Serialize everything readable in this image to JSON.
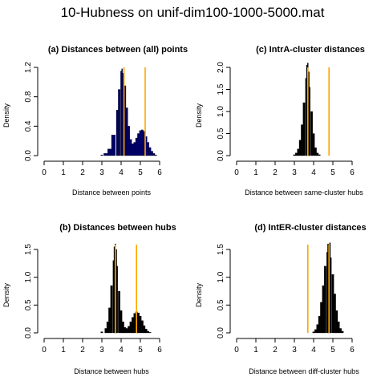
{
  "figure_title": "10-Hubness on unif-dim100-1000-5000.mat",
  "colors": {
    "hist_fill": "#000000",
    "hist_fill_dark_blue": "#000066",
    "marker_line": "#FFA500",
    "axis": "#000000"
  },
  "chart_data": [
    {
      "type": "histogram",
      "title": "(a) Distances between (all) points",
      "xlabel": "Distance between points",
      "ylabel": "Density",
      "xlim": [
        0,
        6
      ],
      "ylim": [
        0,
        1.2
      ],
      "xticks": [
        "0",
        "1",
        "2",
        "3",
        "4",
        "5",
        "6"
      ],
      "yticks": [
        "0.0",
        "0.4",
        "0.8",
        "1.2"
      ],
      "fill": "#000066",
      "vlines": [
        4.15,
        5.25
      ],
      "bins": [
        {
          "x": 3.0,
          "y": 0.01
        },
        {
          "x": 3.2,
          "y": 0.03
        },
        {
          "x": 3.4,
          "y": 0.09
        },
        {
          "x": 3.6,
          "y": 0.28
        },
        {
          "x": 3.8,
          "y": 0.62
        },
        {
          "x": 3.9,
          "y": 0.9
        },
        {
          "x": 4.0,
          "y": 1.15
        },
        {
          "x": 4.05,
          "y": 1.18
        },
        {
          "x": 4.1,
          "y": 1.12
        },
        {
          "x": 4.2,
          "y": 0.95
        },
        {
          "x": 4.3,
          "y": 0.65
        },
        {
          "x": 4.4,
          "y": 0.4
        },
        {
          "x": 4.5,
          "y": 0.22
        },
        {
          "x": 4.6,
          "y": 0.16
        },
        {
          "x": 4.7,
          "y": 0.18
        },
        {
          "x": 4.8,
          "y": 0.24
        },
        {
          "x": 4.9,
          "y": 0.3
        },
        {
          "x": 5.0,
          "y": 0.34
        },
        {
          "x": 5.1,
          "y": 0.35
        },
        {
          "x": 5.2,
          "y": 0.33
        },
        {
          "x": 5.3,
          "y": 0.26
        },
        {
          "x": 5.4,
          "y": 0.18
        },
        {
          "x": 5.5,
          "y": 0.11
        },
        {
          "x": 5.6,
          "y": 0.06
        },
        {
          "x": 5.7,
          "y": 0.03
        },
        {
          "x": 5.8,
          "y": 0.01
        }
      ]
    },
    {
      "type": "histogram",
      "title": "(c) IntrA-cluster distances",
      "xlabel": "Distance between same-cluster hubs",
      "ylabel": "Density",
      "xlim": [
        0,
        6
      ],
      "ylim": [
        0,
        2.0
      ],
      "xticks": [
        "0",
        "1",
        "2",
        "3",
        "4",
        "5",
        "6"
      ],
      "yticks": [
        "0.0",
        "0.5",
        "1.0",
        "1.5",
        "2.0"
      ],
      "fill": "#000000",
      "vlines": [
        3.7,
        4.8
      ],
      "bins": [
        {
          "x": 3.0,
          "y": 0.02
        },
        {
          "x": 3.1,
          "y": 0.06
        },
        {
          "x": 3.2,
          "y": 0.15
        },
        {
          "x": 3.3,
          "y": 0.35
        },
        {
          "x": 3.4,
          "y": 0.7
        },
        {
          "x": 3.5,
          "y": 1.2
        },
        {
          "x": 3.6,
          "y": 1.75
        },
        {
          "x": 3.65,
          "y": 2.05
        },
        {
          "x": 3.7,
          "y": 2.1
        },
        {
          "x": 3.75,
          "y": 1.9
        },
        {
          "x": 3.8,
          "y": 1.55
        },
        {
          "x": 3.9,
          "y": 1.0
        },
        {
          "x": 4.0,
          "y": 0.5
        },
        {
          "x": 4.1,
          "y": 0.18
        },
        {
          "x": 4.2,
          "y": 0.06
        },
        {
          "x": 4.3,
          "y": 0.02
        }
      ]
    },
    {
      "type": "histogram",
      "title": "(b) Distances between hubs",
      "xlabel": "Distance between hubs",
      "ylabel": "Density",
      "xlim": [
        0,
        6
      ],
      "ylim": [
        0,
        1.5
      ],
      "xticks": [
        "0",
        "1",
        "2",
        "3",
        "4",
        "5",
        "6"
      ],
      "yticks": [
        "0.0",
        "0.5",
        "1.0",
        "1.5"
      ],
      "fill": "#000000",
      "vlines": [
        3.7,
        4.8
      ],
      "bins": [
        {
          "x": 3.0,
          "y": 0.02
        },
        {
          "x": 3.2,
          "y": 0.08
        },
        {
          "x": 3.3,
          "y": 0.2
        },
        {
          "x": 3.4,
          "y": 0.45
        },
        {
          "x": 3.5,
          "y": 0.85
        },
        {
          "x": 3.6,
          "y": 1.3
        },
        {
          "x": 3.65,
          "y": 1.55
        },
        {
          "x": 3.7,
          "y": 1.6
        },
        {
          "x": 3.75,
          "y": 1.5
        },
        {
          "x": 3.8,
          "y": 1.2
        },
        {
          "x": 3.9,
          "y": 0.75
        },
        {
          "x": 4.0,
          "y": 0.4
        },
        {
          "x": 4.1,
          "y": 0.2
        },
        {
          "x": 4.2,
          "y": 0.1
        },
        {
          "x": 4.3,
          "y": 0.08
        },
        {
          "x": 4.4,
          "y": 0.12
        },
        {
          "x": 4.5,
          "y": 0.2
        },
        {
          "x": 4.6,
          "y": 0.28
        },
        {
          "x": 4.7,
          "y": 0.35
        },
        {
          "x": 4.8,
          "y": 0.38
        },
        {
          "x": 4.9,
          "y": 0.36
        },
        {
          "x": 5.0,
          "y": 0.3
        },
        {
          "x": 5.1,
          "y": 0.22
        },
        {
          "x": 5.2,
          "y": 0.13
        },
        {
          "x": 5.3,
          "y": 0.07
        },
        {
          "x": 5.4,
          "y": 0.03
        },
        {
          "x": 5.5,
          "y": 0.01
        }
      ]
    },
    {
      "type": "histogram",
      "title": "(d) IntER-cluster distances",
      "xlabel": "Distance between diff-cluster hubs",
      "ylabel": "Density",
      "xlim": [
        0,
        6
      ],
      "ylim": [
        0,
        1.5
      ],
      "xticks": [
        "0",
        "1",
        "2",
        "3",
        "4",
        "5",
        "6"
      ],
      "yticks": [
        "0.0",
        "0.5",
        "1.0",
        "1.5"
      ],
      "fill": "#000000",
      "vlines": [
        3.7,
        4.8
      ],
      "bins": [
        {
          "x": 4.0,
          "y": 0.02
        },
        {
          "x": 4.1,
          "y": 0.06
        },
        {
          "x": 4.2,
          "y": 0.15
        },
        {
          "x": 4.3,
          "y": 0.3
        },
        {
          "x": 4.4,
          "y": 0.55
        },
        {
          "x": 4.5,
          "y": 0.85
        },
        {
          "x": 4.6,
          "y": 1.2
        },
        {
          "x": 4.7,
          "y": 1.45
        },
        {
          "x": 4.75,
          "y": 1.6
        },
        {
          "x": 4.8,
          "y": 1.55
        },
        {
          "x": 4.85,
          "y": 1.62
        },
        {
          "x": 4.9,
          "y": 1.35
        },
        {
          "x": 5.0,
          "y": 1.05
        },
        {
          "x": 5.1,
          "y": 0.7
        },
        {
          "x": 5.2,
          "y": 0.4
        },
        {
          "x": 5.3,
          "y": 0.2
        },
        {
          "x": 5.4,
          "y": 0.08
        },
        {
          "x": 5.5,
          "y": 0.03
        }
      ]
    }
  ]
}
